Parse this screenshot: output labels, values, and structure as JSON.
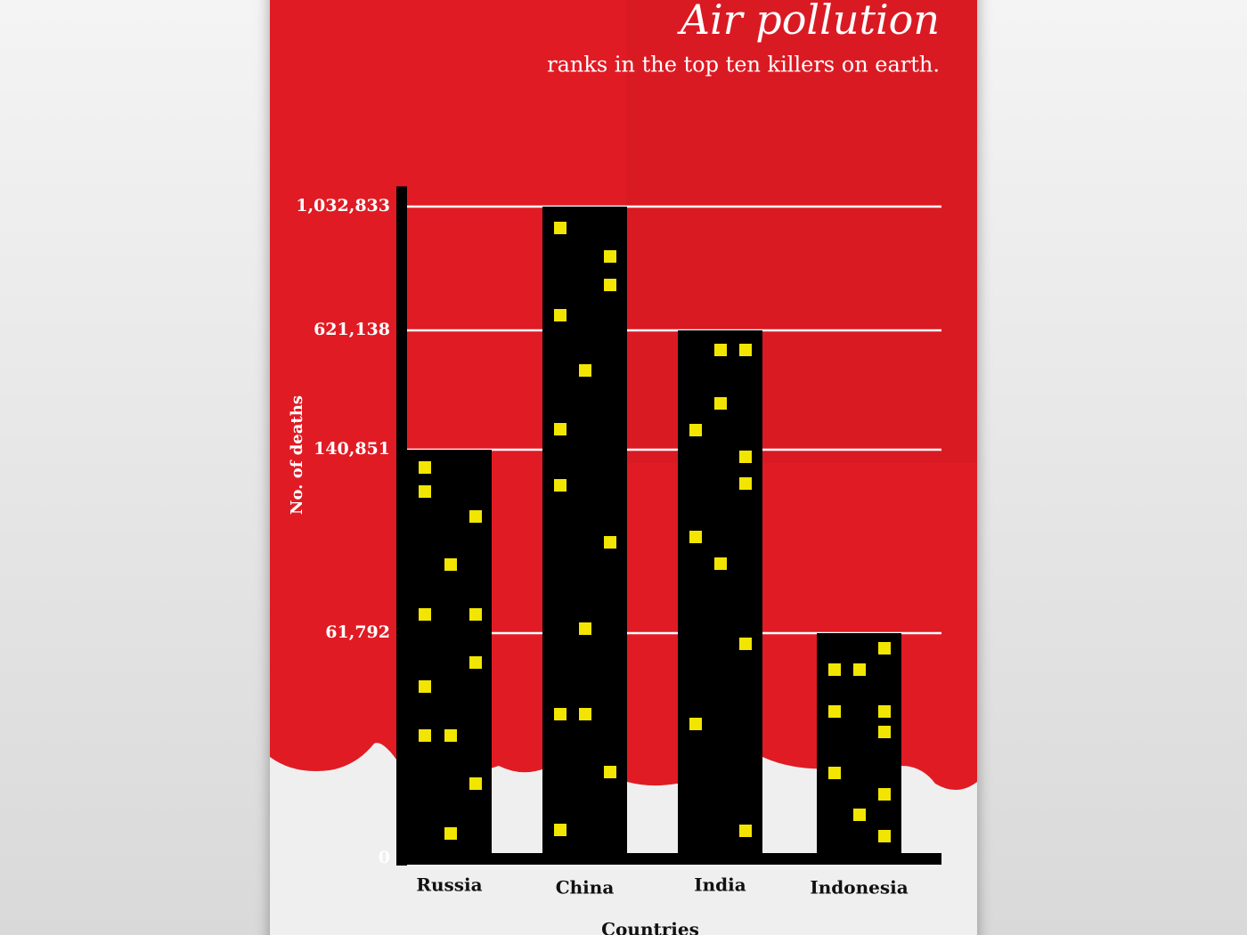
{
  "chart_data": {
    "type": "bar",
    "title": "Air pollution",
    "subtitle": "ranks in the top ten killers on earth.",
    "y_label": "No. of deaths",
    "x_label": "Countries",
    "categories": [
      "Russia",
      "China",
      "India",
      "Indonesia"
    ],
    "values": [
      140851,
      1032833,
      621138,
      61792
    ],
    "color": "#000000",
    "ylim": [
      0,
      1100000
    ],
    "yticks": [
      0,
      {
        "value": 61792,
        "label": "61,792"
      },
      {
        "value": 140851,
        "label": "140,851"
      },
      {
        "value": 621138,
        "label": "621,138"
      },
      {
        "value": 1032833,
        "label": "1,032,833"
      }
    ],
    "grid": true
  }
}
